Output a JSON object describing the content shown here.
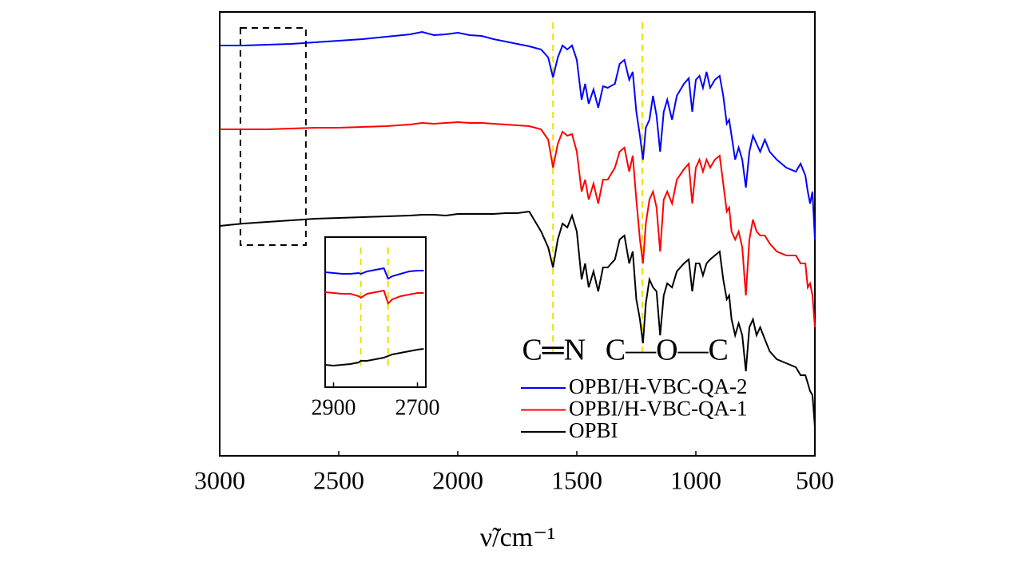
{
  "chart_data": [
    {
      "type": "line",
      "x_label": "ν̃/cm⁻¹",
      "xlim": [
        3000,
        500
      ],
      "xticks": [
        3000,
        2500,
        2000,
        1500,
        1000,
        500
      ],
      "ylim": [
        0,
        556
      ],
      "x": [
        3000,
        2900,
        2800,
        2700,
        2600,
        2500,
        2400,
        2300,
        2200,
        2150,
        2100,
        2050,
        2000,
        1950,
        1900,
        1850,
        1800,
        1750,
        1700,
        1650,
        1620,
        1600,
        1580,
        1560,
        1540,
        1520,
        1500,
        1480,
        1465,
        1450,
        1430,
        1410,
        1390,
        1370,
        1340,
        1320,
        1300,
        1280,
        1265,
        1250,
        1235,
        1222,
        1210,
        1195,
        1180,
        1165,
        1150,
        1135,
        1120,
        1100,
        1080,
        1050,
        1030,
        1015,
        1000,
        985,
        970,
        955,
        940,
        920,
        900,
        885,
        870,
        860,
        850,
        835,
        820,
        805,
        790,
        775,
        760,
        745,
        730,
        710,
        690,
        660,
        620,
        580,
        560,
        540,
        530,
        520,
        510,
        500
      ],
      "series": [
        {
          "name": "OPBI/H-VBC-QA-2",
          "color": "#0000ff",
          "values": [
            514,
            514,
            515,
            516,
            518,
            520,
            522,
            525,
            528,
            531,
            527,
            528,
            530,
            527,
            526,
            522,
            519,
            516,
            513,
            509,
            499,
            474,
            499,
            514,
            509,
            514,
            496,
            446,
            466,
            441,
            459,
            436,
            463,
            461,
            466,
            491,
            496,
            471,
            481,
            431,
            401,
            371,
            411,
            421,
            451,
            426,
            381,
            431,
            446,
            421,
            451,
            466,
            473,
            431,
            471,
            476,
            461,
            481,
            461,
            471,
            476,
            451,
            416,
            421,
            401,
            371,
            386,
            371,
            336,
            381,
            401,
            391,
            381,
            396,
            381,
            371,
            361,
            356,
            366,
            351,
            331,
            316,
            331,
            271
          ]
        },
        {
          "name": "OPBI/H-VBC-QA-1",
          "color": "#ff0000",
          "values": [
            409,
            409,
            409,
            410,
            411,
            411,
            412,
            413,
            415,
            417,
            416,
            417,
            418,
            417,
            417,
            416,
            415,
            414,
            413,
            409,
            396,
            361,
            391,
            406,
            401,
            403,
            381,
            331,
            346,
            321,
            341,
            316,
            346,
            346,
            361,
            381,
            386,
            356,
            376,
            321,
            271,
            241,
            291,
            321,
            331,
            311,
            256,
            321,
            331,
            316,
            346,
            359,
            366,
            316,
            361,
            371,
            356,
            371,
            361,
            371,
            376,
            341,
            306,
            311,
            281,
            271,
            281,
            261,
            201,
            271,
            296,
            281,
            276,
            276,
            266,
            256,
            251,
            251,
            241,
            241,
            211,
            216,
            201,
            161
          ]
        },
        {
          "name": "OPBI",
          "color": "#000000",
          "values": [
            288,
            291,
            293,
            295,
            297,
            298,
            299,
            300,
            301,
            302,
            302,
            301,
            303,
            303,
            303,
            303,
            304,
            304,
            306,
            281,
            261,
            236,
            271,
            291,
            286,
            301,
            281,
            221,
            241,
            211,
            231,
            206,
            236,
            236,
            246,
            271,
            276,
            241,
            256,
            196,
            171,
            141,
            191,
            221,
            211,
            206,
            151,
            201,
            216,
            211,
            231,
            241,
            246,
            206,
            241,
            241,
            226,
            241,
            246,
            251,
            256,
            221,
            196,
            201,
            171,
            151,
            166,
            151,
            106,
            161,
            171,
            151,
            161,
            146,
            131,
            121,
            116,
            111,
            101,
            101,
            91,
            81,
            76,
            36
          ]
        }
      ],
      "ref_lines": [
        1600,
        1225
      ],
      "ref_color": "#f0e000",
      "zoom_box": {
        "x": [
          2913,
          2638
        ],
        "y": [
          264,
          536
        ]
      },
      "annotations": [
        {
          "text": "C═N",
          "x": 1730
        },
        {
          "text": "C—O—C",
          "x": 1380
        }
      ],
      "legend": "lower right"
    },
    {
      "type": "line",
      "xlim": [
        2920,
        2680
      ],
      "xticks": [
        2900,
        2700
      ],
      "ylim": [
        0,
        188
      ],
      "x": [
        2920,
        2900,
        2880,
        2860,
        2840,
        2835,
        2820,
        2800,
        2780,
        2770,
        2760,
        2740,
        2720,
        2700,
        2685
      ],
      "series": [
        {
          "color": "#0000ff",
          "values": [
            144,
            143,
            142,
            142,
            143,
            142,
            145,
            147,
            149,
            136,
            139,
            142,
            145,
            146,
            146
          ]
        },
        {
          "color": "#ff0000",
          "values": [
            119,
            118,
            117,
            117,
            114,
            112,
            117,
            119,
            121,
            105,
            110,
            114,
            116,
            118,
            118
          ]
        },
        {
          "color": "#000000",
          "values": [
            28,
            27,
            28,
            29,
            31,
            33,
            33,
            35,
            37,
            39,
            41,
            43,
            45,
            47,
            48
          ]
        }
      ],
      "ref_lines": [
        2835,
        2770
      ],
      "ref_color": "#f0e000"
    }
  ]
}
